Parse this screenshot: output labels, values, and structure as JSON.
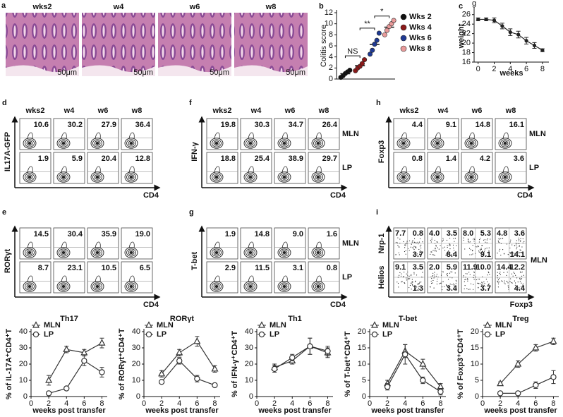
{
  "panel_a": {
    "letter": "a",
    "labels": [
      "wks2",
      "w4",
      "w6",
      "w8"
    ],
    "label_colors": [
      "#111111",
      "#d42020",
      "#1f6fb0",
      "#d42020"
    ],
    "scale_bar": "50μm"
  },
  "chart_data": [
    {
      "type": "strip",
      "letter": "b",
      "ylabel": "Colitis score",
      "ylim": [
        0,
        12
      ],
      "yticks": [
        0,
        2,
        4,
        6,
        8,
        10,
        12
      ],
      "series": [
        {
          "name": "Wks 2",
          "color": "#111111",
          "values": [
            0.3,
            0.6,
            1.0,
            1.3,
            1.6
          ]
        },
        {
          "name": "Wks 4",
          "color": "#8b1a1a",
          "values": [
            1.5,
            2.0,
            2.3,
            2.8,
            3.5
          ]
        },
        {
          "name": "Wks 6",
          "color": "#1f3a93",
          "values": [
            4.5,
            5.2,
            6.3,
            7.0,
            8.3
          ]
        },
        {
          "name": "Wks 8",
          "color": "#e89a9a",
          "values": [
            8.0,
            8.8,
            9.5,
            10.0,
            10.6
          ]
        }
      ],
      "annotations": [
        "NS",
        "**",
        "*"
      ]
    },
    {
      "type": "line",
      "letter": "c",
      "ylabel": "weight",
      "xlabel": "weeks",
      "y_unit": "g",
      "x": [
        0,
        1,
        2,
        3,
        4,
        5,
        6,
        7,
        8
      ],
      "values": [
        25.0,
        25.0,
        24.8,
        23.6,
        22.3,
        21.8,
        20.5,
        19.5,
        18.5
      ],
      "errors": [
        0.3,
        0.3,
        0.5,
        0.6,
        0.7,
        0.7,
        0.7,
        0.6,
        0.3
      ],
      "color": "#222222",
      "marker": "dot",
      "xlim": [
        -0.5,
        8.8
      ],
      "xticks": [
        0,
        2,
        4,
        6,
        8
      ],
      "ylim": [
        16,
        27
      ],
      "yticks": [
        16,
        18,
        20,
        22,
        24,
        26
      ]
    },
    {
      "type": "line",
      "title": "Th17",
      "ylabel": "% of IL-17A⁺CD4⁺T",
      "xlabel": "weeks post transfer",
      "x": [
        2,
        4,
        6,
        8
      ],
      "xlim": [
        0,
        8.6
      ],
      "xticks": [
        0,
        2,
        4,
        6,
        8
      ],
      "ylim": [
        0,
        40
      ],
      "yticks": [
        0,
        10,
        20,
        30,
        40
      ],
      "series": [
        {
          "name": "MLN",
          "marker": "triangle",
          "color": "#333333",
          "values": [
            10,
            29,
            27,
            33
          ],
          "errors": [
            3,
            2,
            2,
            3
          ]
        },
        {
          "name": "LP",
          "marker": "circle",
          "color": "#333333",
          "values": [
            2,
            5,
            22,
            15
          ],
          "errors": [
            1,
            1,
            3,
            3
          ]
        }
      ]
    },
    {
      "type": "line",
      "title": "RORγt",
      "ylabel": "% of RORγt⁺CD4⁺T",
      "xlabel": "weeks post transfer",
      "x": [
        2,
        4,
        6,
        8
      ],
      "xlim": [
        0,
        8.6
      ],
      "xticks": [
        0,
        2,
        4,
        6,
        8
      ],
      "ylim": [
        0,
        40
      ],
      "yticks": [
        0,
        10,
        20,
        30,
        40
      ],
      "series": [
        {
          "name": "MLN",
          "marker": "triangle",
          "color": "#333333",
          "values": [
            14,
            27,
            34,
            17
          ],
          "errors": [
            2,
            2,
            3,
            2
          ]
        },
        {
          "name": "LP",
          "marker": "circle",
          "color": "#333333",
          "values": [
            9,
            22,
            11,
            7
          ],
          "errors": [
            1,
            2,
            2,
            1
          ]
        }
      ]
    },
    {
      "type": "line",
      "title": "Th1",
      "ylabel": "% of IFN-γ⁺CD4⁺T",
      "xlabel": "weeks post transfer",
      "x": [
        2,
        4,
        6,
        8
      ],
      "xlim": [
        0,
        8.6
      ],
      "xticks": [
        0,
        2,
        4,
        6,
        8
      ],
      "ylim": [
        0,
        40
      ],
      "yticks": [
        0,
        10,
        20,
        30,
        40
      ],
      "series": [
        {
          "name": "MLN",
          "marker": "triangle",
          "color": "#333333",
          "values": [
            18,
            22,
            31,
            27
          ],
          "errors": [
            2,
            2,
            5,
            3
          ]
        },
        {
          "name": "LP",
          "marker": "circle",
          "color": "#333333",
          "values": [
            17,
            24,
            31,
            28
          ],
          "errors": [
            2,
            2,
            5,
            3
          ]
        }
      ]
    },
    {
      "type": "line",
      "title": "T-bet",
      "ylabel": "% of T-bet⁺CD4⁺T",
      "xlabel": "weeks post transfer",
      "x": [
        2,
        4,
        6,
        8
      ],
      "xlim": [
        0,
        8.6
      ],
      "xticks": [
        0,
        2,
        4,
        6,
        8
      ],
      "ylim": [
        0,
        20
      ],
      "yticks": [
        0,
        5,
        10,
        15,
        20
      ],
      "series": [
        {
          "name": "MLN",
          "marker": "triangle",
          "color": "#333333",
          "values": [
            4,
            14,
            10,
            3
          ],
          "errors": [
            1,
            2,
            1.5,
            1
          ]
        },
        {
          "name": "LP",
          "marker": "circle",
          "color": "#333333",
          "values": [
            3,
            13,
            5,
            1.5
          ],
          "errors": [
            1,
            3,
            1,
            1
          ]
        }
      ]
    },
    {
      "type": "line",
      "title": "Treg",
      "ylabel": "% of Foxp3⁺CD4⁺T",
      "xlabel": "weeks post transfer",
      "x": [
        2,
        4,
        6,
        8
      ],
      "xlim": [
        0,
        8.6
      ],
      "xticks": [
        0,
        2,
        4,
        6,
        8
      ],
      "ylim": [
        0,
        20
      ],
      "yticks": [
        0,
        5,
        10,
        15,
        20
      ],
      "series": [
        {
          "name": "MLN",
          "marker": "triangle",
          "color": "#333333",
          "values": [
            4,
            10,
            15,
            17
          ],
          "errors": [
            0.5,
            1,
            1,
            1
          ]
        },
        {
          "name": "LP",
          "marker": "circle",
          "color": "#333333",
          "values": [
            1,
            1,
            3.5,
            6
          ],
          "errors": [
            0.3,
            0.5,
            1,
            2
          ]
        }
      ]
    }
  ],
  "flow_panels": {
    "d": {
      "letter": "d",
      "columns": [
        "wks2",
        "w4",
        "w6",
        "w8"
      ],
      "ylabel": "IL17A-GFP",
      "xlabel": "CD4",
      "rows": [
        [
          "10.6",
          "30.2",
          "27.9",
          "36.4"
        ],
        [
          "1.9",
          "5.9",
          "20.4",
          "12.8"
        ]
      ]
    },
    "f": {
      "letter": "f",
      "columns": [
        "wks2",
        "w4",
        "w6",
        "w8"
      ],
      "ylabel": "IFN-γ",
      "xlabel": "CD4",
      "row_labels": [
        "MLN",
        "LP"
      ],
      "rows": [
        [
          "19.8",
          "30.3",
          "34.7",
          "26.4"
        ],
        [
          "18.8",
          "25.4",
          "38.9",
          "29.7"
        ]
      ]
    },
    "h": {
      "letter": "h",
      "columns": [
        "wks2",
        "w4",
        "w6",
        "w8"
      ],
      "ylabel": "Foxp3",
      "xlabel": "CD4",
      "row_labels": [
        "MLN",
        "LP"
      ],
      "rows": [
        [
          "4.4",
          "9.1",
          "14.8",
          "16.1"
        ],
        [
          "0.8",
          "1.4",
          "4.2",
          "3.6"
        ]
      ]
    },
    "e": {
      "letter": "e",
      "ylabel": "RORγt",
      "xlabel": "CD4",
      "rows": [
        [
          "14.5",
          "30.4",
          "35.9",
          "19.0"
        ],
        [
          "8.7",
          "23.1",
          "10.5",
          "6.5"
        ]
      ]
    },
    "g": {
      "letter": "g",
      "ylabel": "T-bet",
      "xlabel": "CD4",
      "row_labels": [
        "MLN",
        "LP"
      ],
      "rows": [
        [
          "1.9",
          "14.8",
          "9.0",
          "1.6"
        ],
        [
          "2.9",
          "11.5",
          "3.1",
          "0.8"
        ]
      ]
    },
    "i": {
      "letter": "i",
      "ylabels": [
        "Nrp-1",
        "Helios"
      ],
      "xlabel": "Foxp3",
      "row_label": "MLN",
      "quadrants": [
        [
          [
            "7.7",
            "0.8",
            "3.7"
          ],
          [
            "4.0",
            "3.5",
            "8.4"
          ],
          [
            "8.0",
            "5.3",
            "9.1"
          ],
          [
            "4.8",
            "3.6",
            "14.1"
          ]
        ],
        [
          [
            "9.1",
            "3.5",
            "1.3"
          ],
          [
            "2.0",
            "5.9",
            "3.4"
          ],
          [
            "11.9",
            "10.0",
            "3.7"
          ],
          [
            "14.4",
            "12.2",
            "4.4"
          ]
        ]
      ]
    }
  }
}
